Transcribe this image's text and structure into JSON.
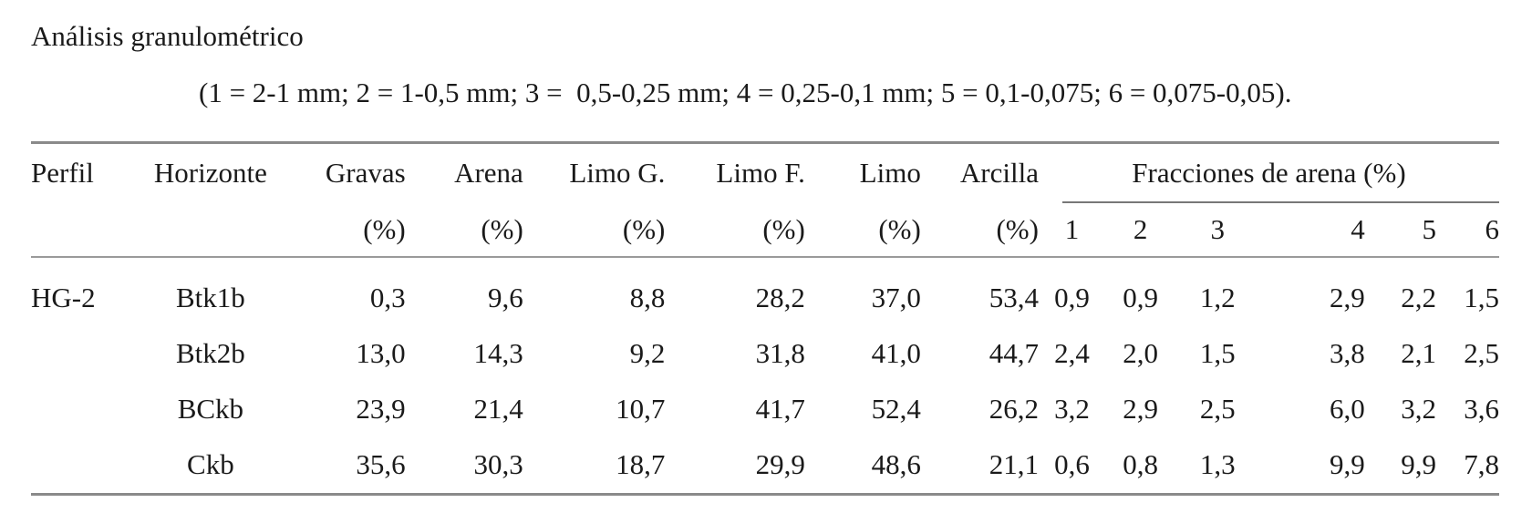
{
  "title": "Análisis granulométrico",
  "subtitle": "(1 = 2-1 mm; 2 = 1-0,5 mm; 3 =  0,5-0,25 mm; 4 = 0,25-0,1 mm; 5 = 0,1-0,075; 6 = 0,075-0,05).",
  "header": {
    "perfil": "Perfil",
    "horizonte": "Horizonte",
    "gravas": "Gravas",
    "arena": "Arena",
    "limo_g": "Limo G.",
    "limo_f": "Limo F.",
    "limo": "Limo",
    "arcilla": "Arcilla",
    "fracciones": "Fracciones de arena (%)",
    "units": [
      "(%)",
      "(%)",
      "(%)",
      "(%)",
      "(%)",
      "(%)"
    ],
    "fraction_numbers": [
      "1",
      "2",
      "3",
      "4",
      "5",
      "6"
    ]
  },
  "rows": [
    {
      "perfil": "HG-2",
      "horizonte": "Btk1b",
      "values": [
        "0,3",
        "9,6",
        "8,8",
        "28,2",
        "37,0",
        "53,4",
        "0,9",
        "0,9",
        "1,2",
        "2,9",
        "2,2",
        "1,5"
      ]
    },
    {
      "perfil": "",
      "horizonte": "Btk2b",
      "values": [
        "13,0",
        "14,3",
        "9,2",
        "31,8",
        "41,0",
        "44,7",
        "2,4",
        "2,0",
        "1,5",
        "3,8",
        "2,1",
        "2,5"
      ]
    },
    {
      "perfil": "",
      "horizonte": "BCkb",
      "values": [
        "23,9",
        "21,4",
        "10,7",
        "41,7",
        "52,4",
        "26,2",
        "3,2",
        "2,9",
        "2,5",
        "6,0",
        "3,2",
        "3,6"
      ]
    },
    {
      "perfil": "",
      "horizonte": "Ckb",
      "values": [
        "35,6",
        "30,3",
        "18,7",
        "29,9",
        "48,6",
        "21,1",
        "0,6",
        "0,8",
        "1,3",
        "9,9",
        "9,9",
        "7,8"
      ]
    }
  ]
}
